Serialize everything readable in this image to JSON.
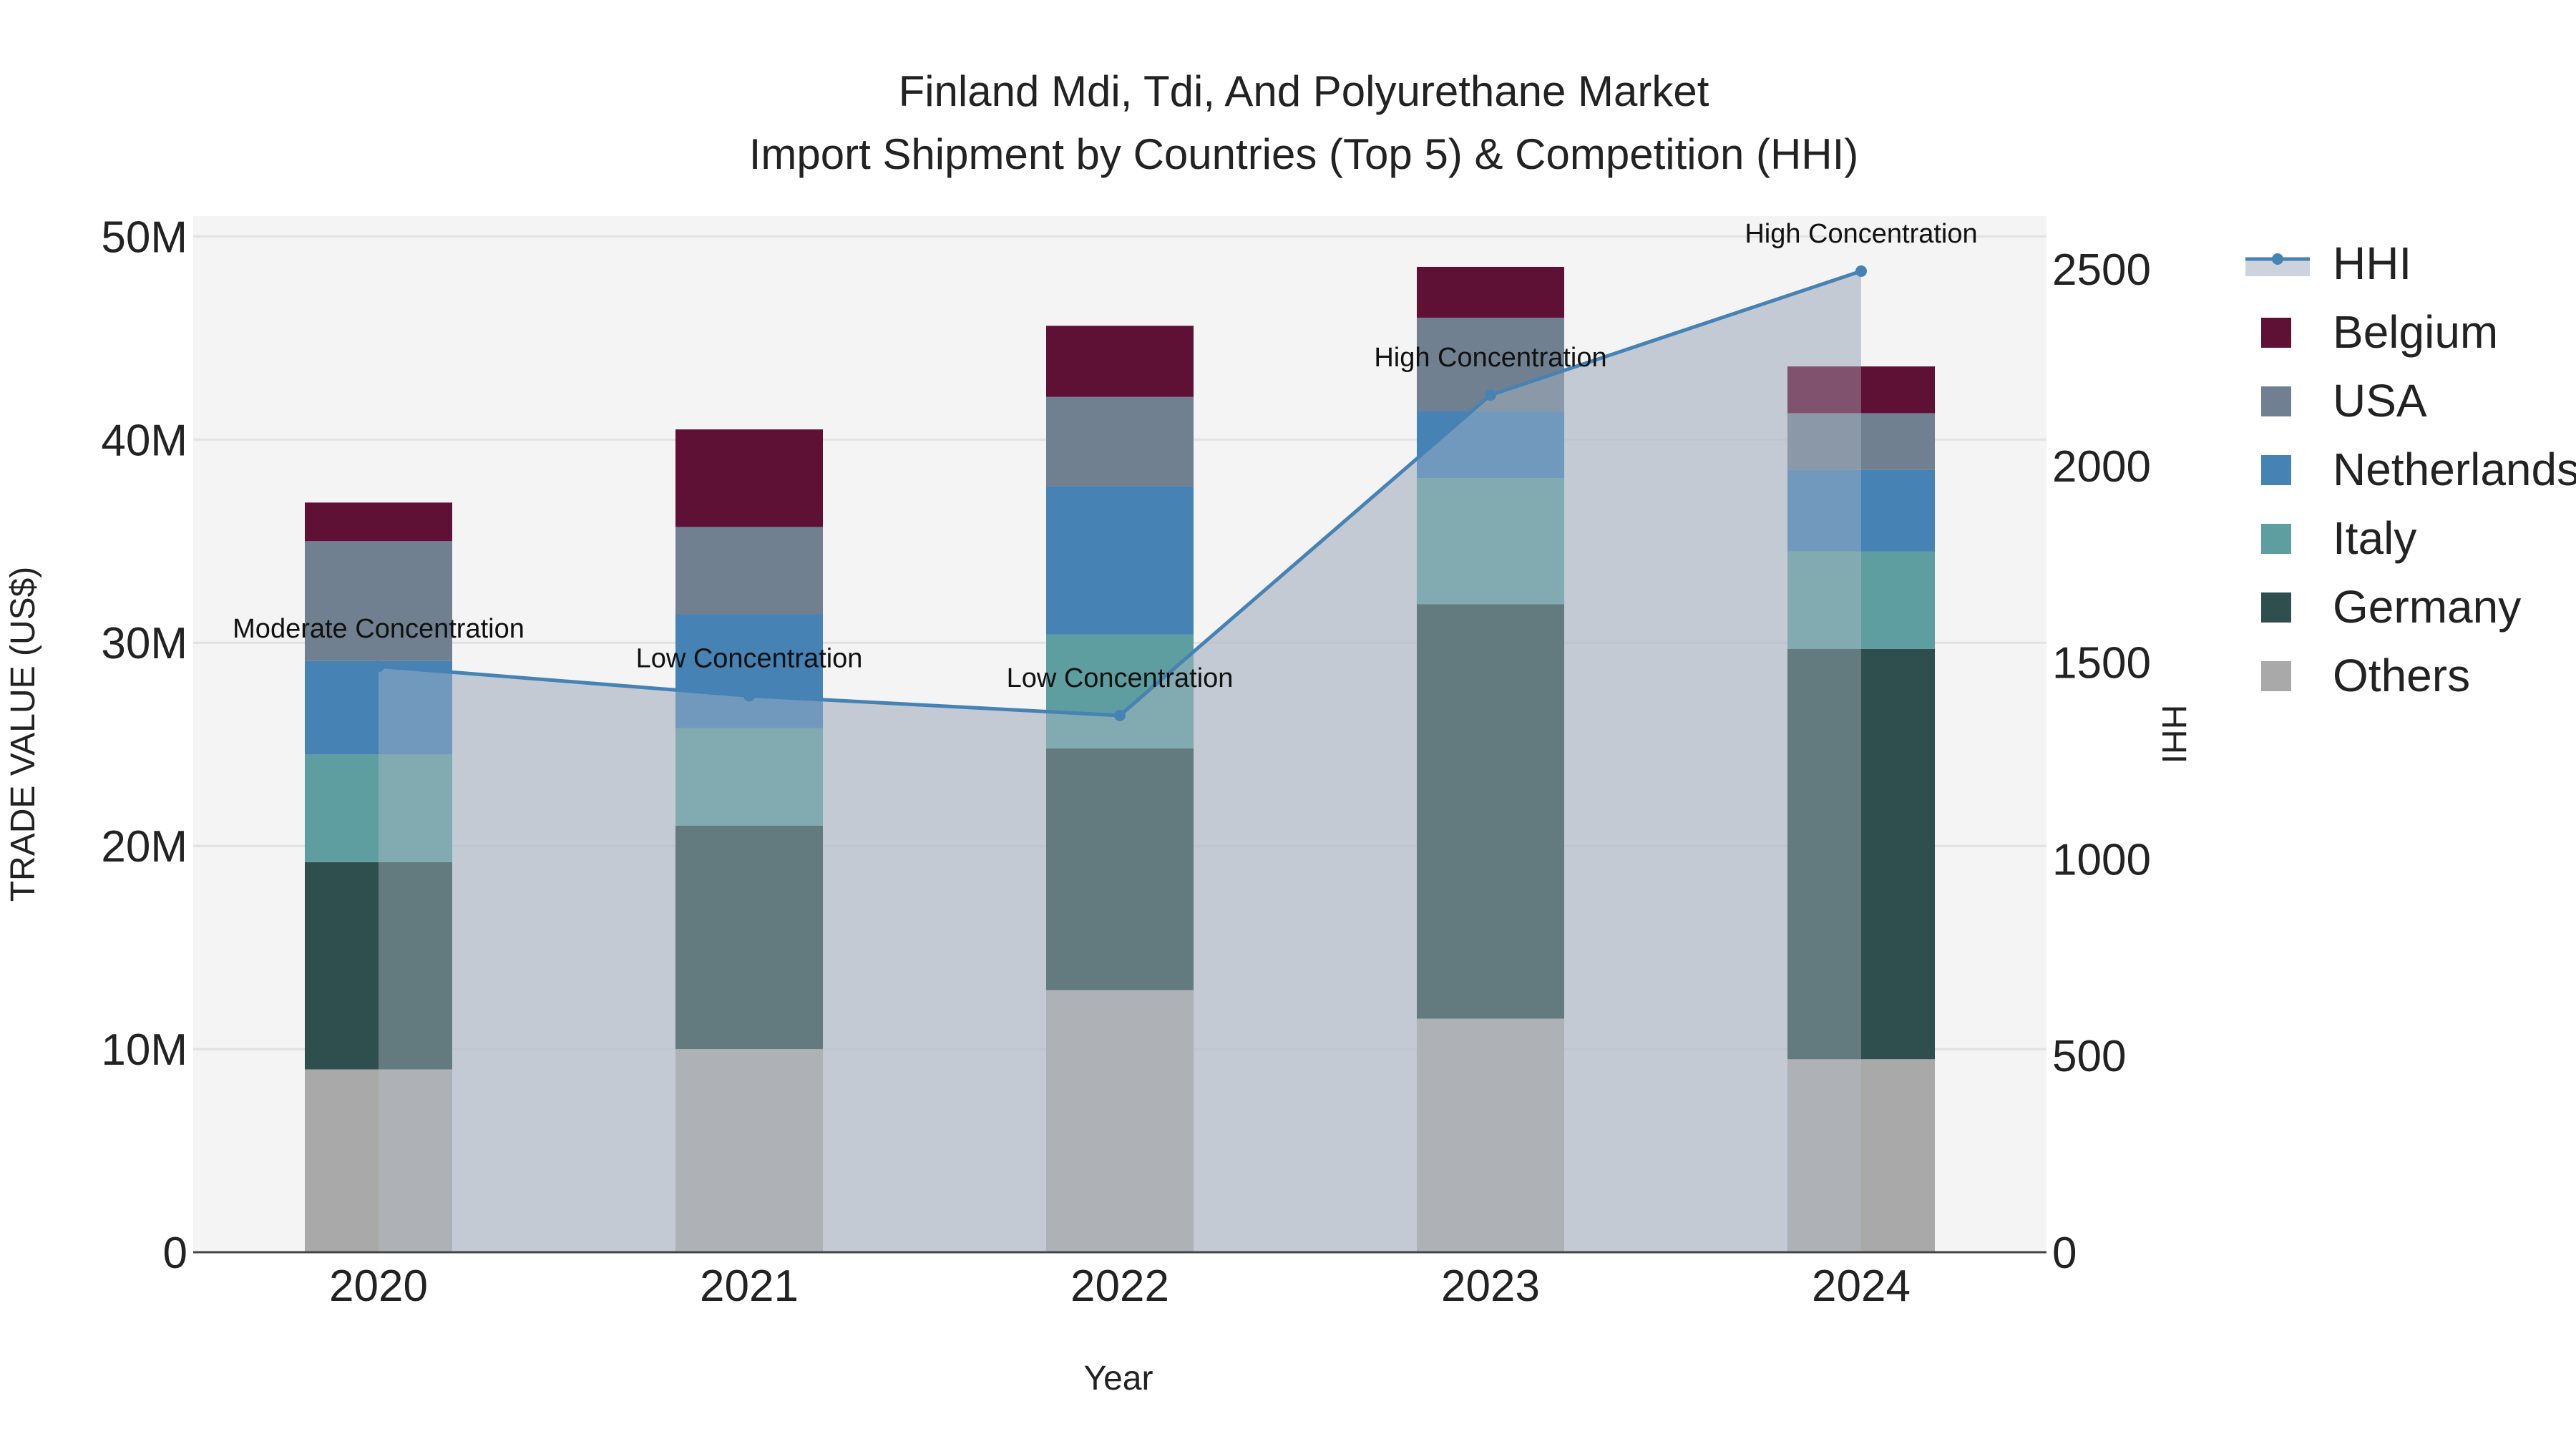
{
  "chart_data": {
    "type": "bar",
    "title": "Finland Mdi, Tdi, And Polyurethane Market",
    "subtitle": "Import Shipment by Countries (Top 5) & Competition (HHI)",
    "xlabel": "Year",
    "ylabel": "TRADE VALUE (US$)",
    "y2label": "HHI",
    "categories": [
      "2020",
      "2021",
      "2022",
      "2023",
      "2024"
    ],
    "ylim": [
      0,
      51000000
    ],
    "y2lim": [
      0,
      2635
    ],
    "yticks": [
      {
        "value": 0,
        "label": "0"
      },
      {
        "value": 10000000,
        "label": "10M"
      },
      {
        "value": 20000000,
        "label": "20M"
      },
      {
        "value": 30000000,
        "label": "30M"
      },
      {
        "value": 40000000,
        "label": "40M"
      },
      {
        "value": 50000000,
        "label": "50M"
      }
    ],
    "y2ticks": [
      {
        "value": 0,
        "label": "0"
      },
      {
        "value": 500,
        "label": "500"
      },
      {
        "value": 1000,
        "label": "1000"
      },
      {
        "value": 1500,
        "label": "1500"
      },
      {
        "value": 2000,
        "label": "2000"
      },
      {
        "value": 2500,
        "label": "2500"
      }
    ],
    "grid": true,
    "legend_position": "right",
    "series": [
      {
        "name": "Others",
        "color": "#a9a9a9",
        "values": [
          9000000,
          10000000,
          12900000,
          11500000,
          9500000
        ]
      },
      {
        "name": "Germany",
        "color": "#2f4f4f",
        "values": [
          10200000,
          11000000,
          11900000,
          20400000,
          20200000
        ]
      },
      {
        "name": "Italy",
        "color": "#5f9ea0",
        "values": [
          5300000,
          4800000,
          5600000,
          6200000,
          4800000
        ]
      },
      {
        "name": "Netherlands",
        "color": "#4682b4",
        "values": [
          4600000,
          5600000,
          7300000,
          3300000,
          4000000
        ]
      },
      {
        "name": "USA",
        "color": "#708090",
        "values": [
          5900000,
          4300000,
          4400000,
          4600000,
          2800000
        ]
      },
      {
        "name": "Belgium",
        "color": "#5e1035",
        "values": [
          1900000,
          4800000,
          3500000,
          2500000,
          2300000
        ]
      }
    ],
    "hhi": {
      "name": "HHI",
      "color": "#4682b4",
      "values": [
        1490,
        1415,
        1365,
        2180,
        2495
      ],
      "annotations": [
        "Moderate Concentration",
        "Low Concentration",
        "Low Concentration",
        "High Concentration",
        "High Concentration"
      ]
    },
    "legend_order": [
      "HHI",
      "Belgium",
      "USA",
      "Netherlands",
      "Italy",
      "Germany",
      "Others"
    ]
  }
}
